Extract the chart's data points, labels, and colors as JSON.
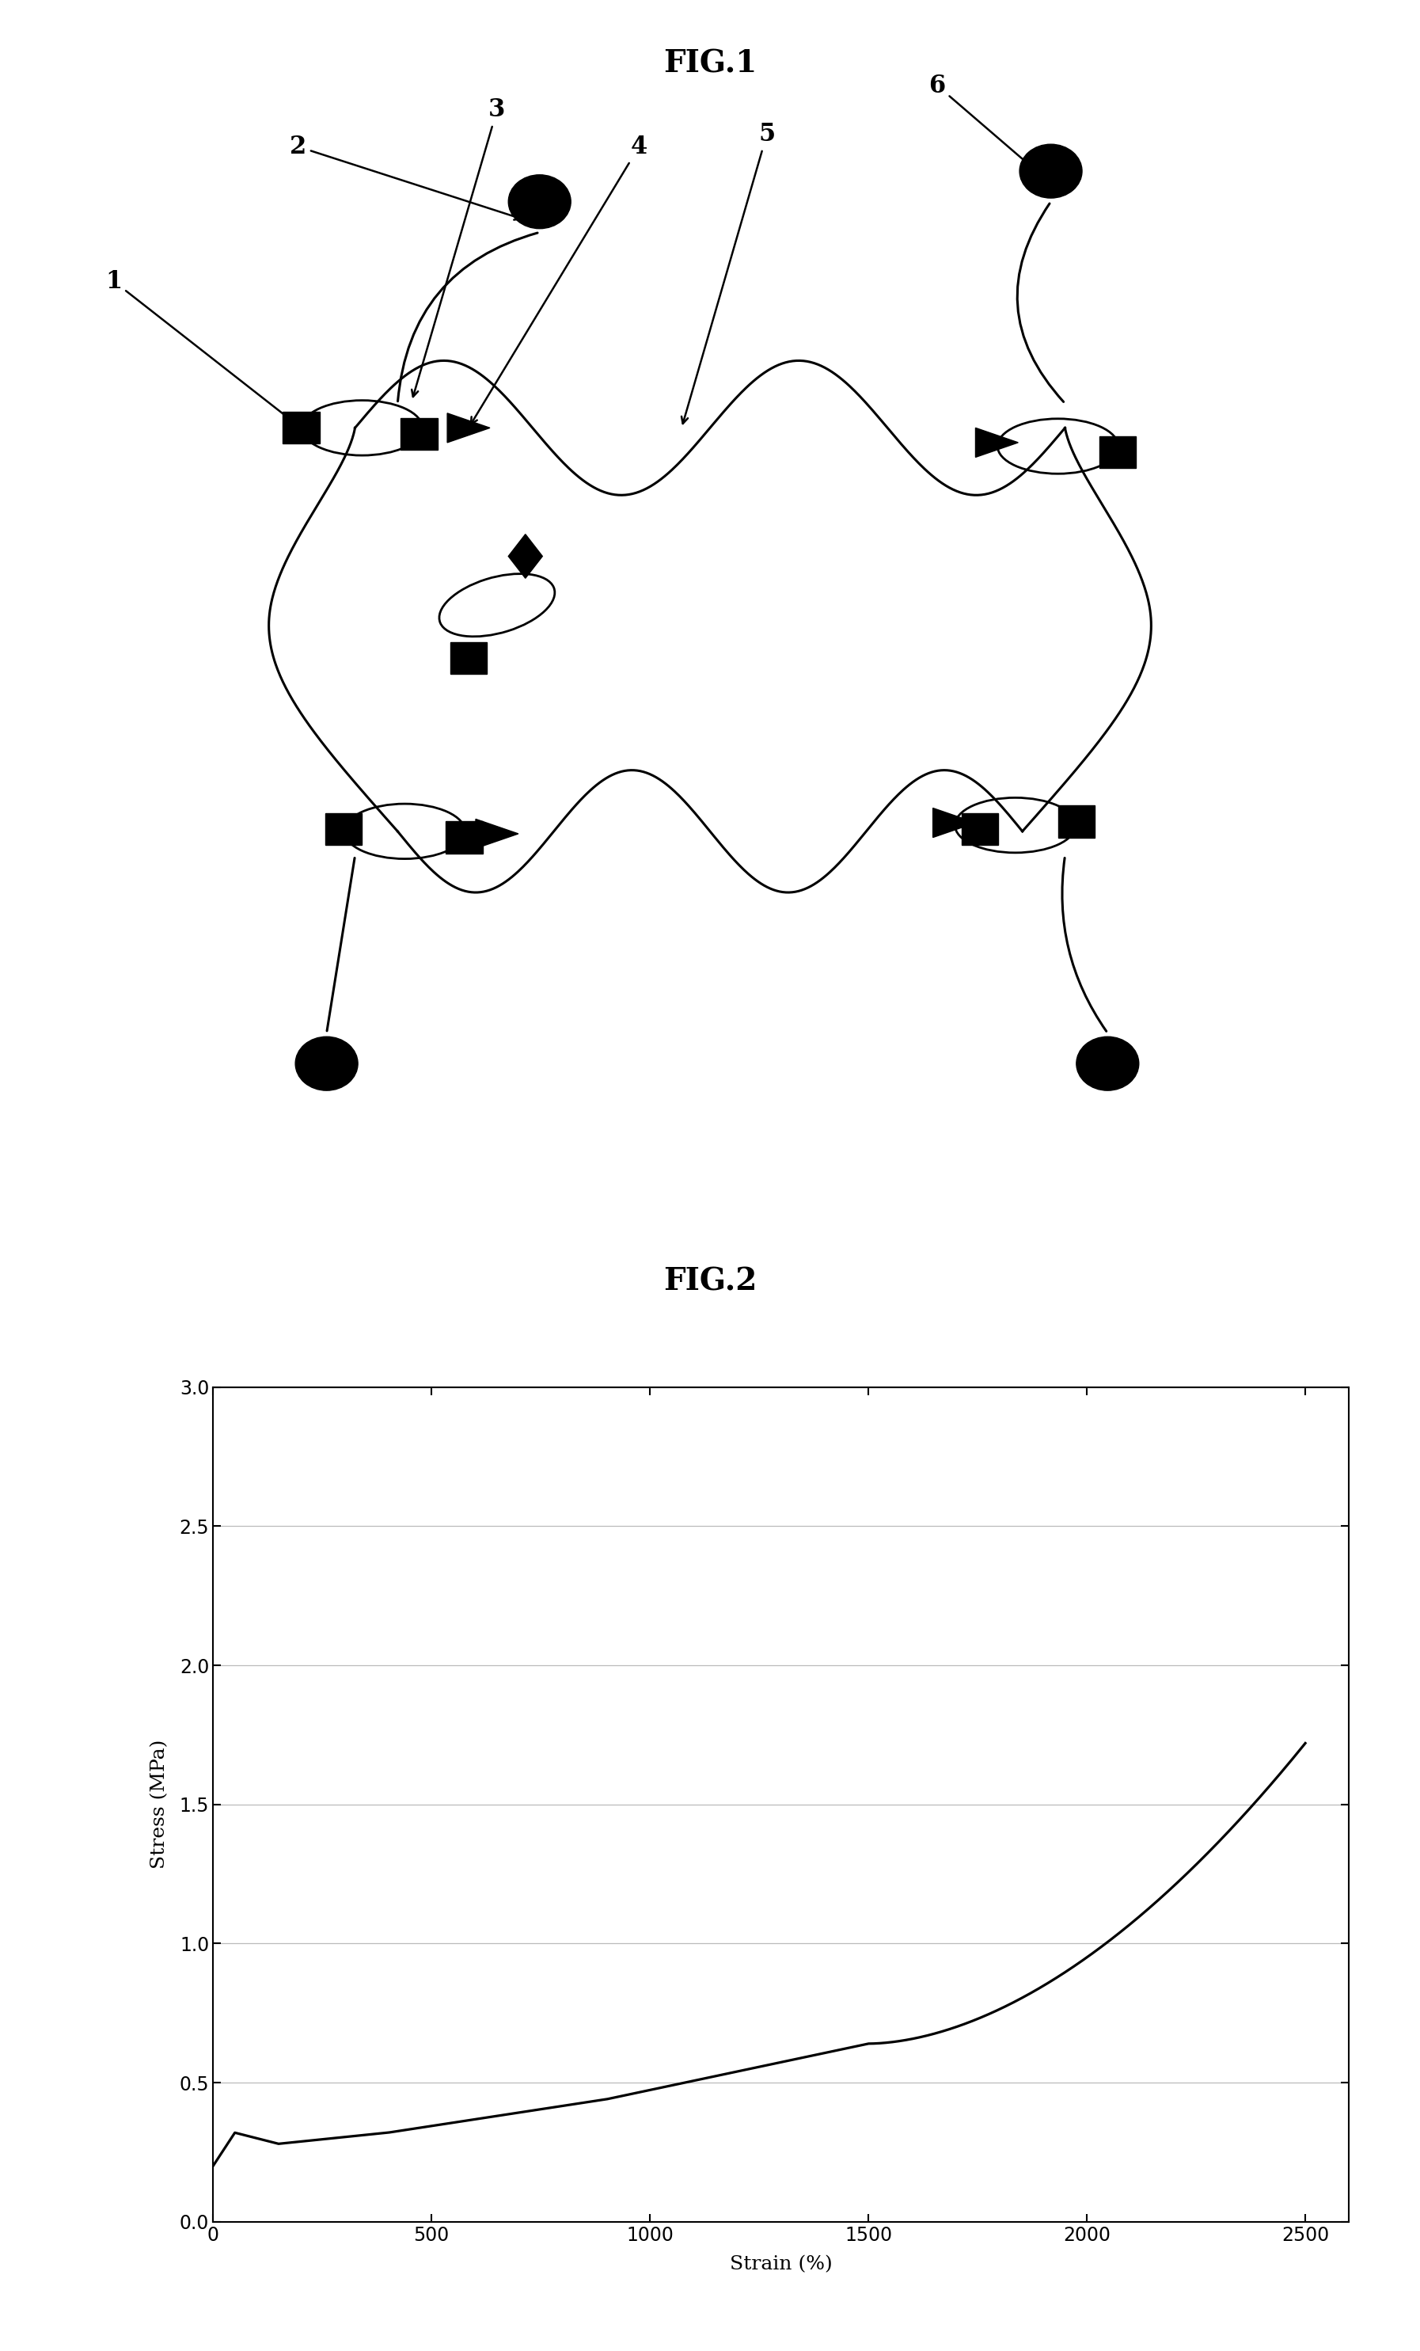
{
  "fig1_title": "FIG.1",
  "fig2_title": "FIG.2",
  "fig2_xlabel": "Strain (%)",
  "fig2_ylabel": "Stress (MPa)",
  "fig2_xlim": [
    0,
    2600
  ],
  "fig2_ylim": [
    0.0,
    3.0
  ],
  "fig2_xticks": [
    0,
    500,
    1000,
    1500,
    2000,
    2500
  ],
  "fig2_yticks": [
    0.0,
    0.5,
    1.0,
    1.5,
    2.0,
    2.5,
    3.0
  ],
  "background_color": "#ffffff",
  "line_color": "#000000",
  "label_fontsize": 18,
  "title_fontsize": 22,
  "axis_fontsize": 17
}
